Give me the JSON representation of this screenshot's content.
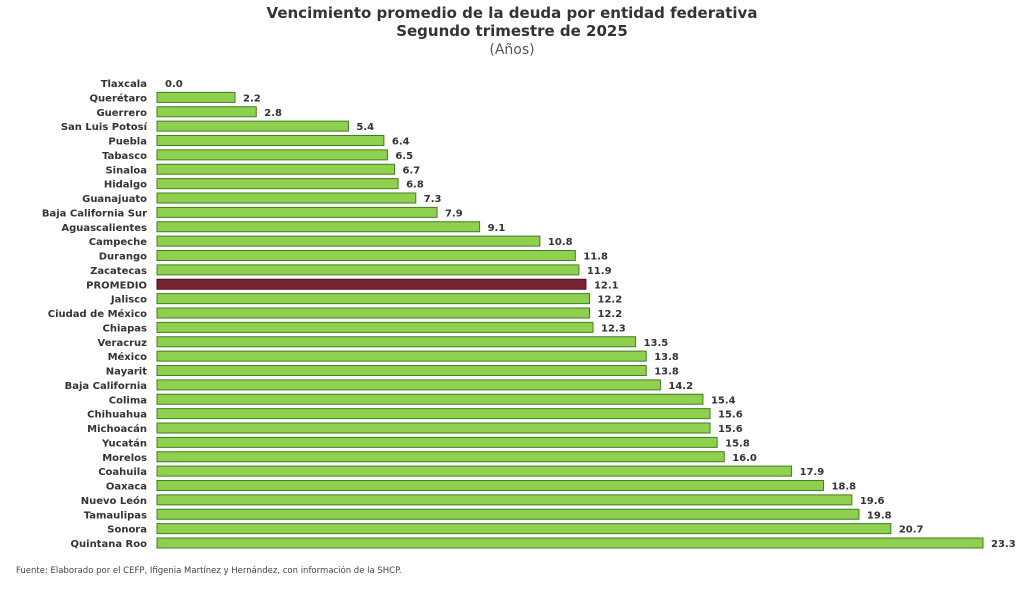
{
  "chart_data": {
    "type": "bar",
    "orientation": "horizontal",
    "title": "Vencimiento promedio de la deuda por entidad federativa",
    "subtitle": "Segundo trimestre de 2025",
    "unit_label": "(Años)",
    "xlim": [
      0,
      23.3
    ],
    "grid": false,
    "categories": [
      "Tlaxcala",
      "Querétaro",
      "Guerrero",
      "San Luis Potosí",
      "Puebla",
      "Tabasco",
      "Sinaloa",
      "Hidalgo",
      "Guanajuato",
      "Baja California Sur",
      "Aguascalientes",
      "Campeche",
      "Durango",
      "Zacatecas",
      "PROMEDIO",
      "Jalisco",
      "Ciudad de México",
      "Chiapas",
      "Veracruz",
      "México",
      "Nayarit",
      "Baja California",
      "Colima",
      "Chihuahua",
      "Michoacán",
      "Yucatán",
      "Morelos",
      "Coahuila",
      "Oaxaca",
      "Nuevo León",
      "Tamaulipas",
      "Sonora",
      "Quintana Roo"
    ],
    "values": [
      0.0,
      2.2,
      2.8,
      5.4,
      6.4,
      6.5,
      6.7,
      6.8,
      7.3,
      7.9,
      9.1,
      10.8,
      11.8,
      11.9,
      12.1,
      12.2,
      12.2,
      12.3,
      13.5,
      13.8,
      13.8,
      14.2,
      15.4,
      15.6,
      15.6,
      15.8,
      16.0,
      17.9,
      18.8,
      19.6,
      19.8,
      20.7,
      23.3
    ],
    "highlight": "PROMEDIO",
    "colors": {
      "bar": "#8fd14f",
      "bar_border": "#3f7f1f",
      "highlight": "#7a2332",
      "highlight_border": "#4a0f1a"
    }
  },
  "source": "Fuente: Elaborado por el CEFP, Ifigenia Martínez y Hernández, con información de la SHCP."
}
